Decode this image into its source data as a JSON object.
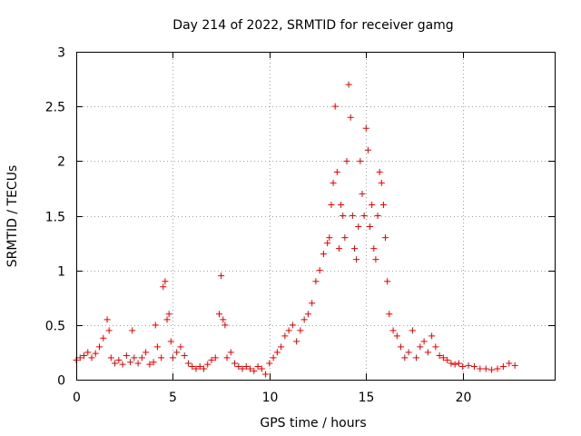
{
  "chart_data": {
    "type": "scatter",
    "title": "Day 214 of 2022, SRMTID for receiver gamg",
    "xlabel": "GPS time / hours",
    "ylabel": "SRMTID / TECUs",
    "xlim": [
      0,
      24.76
    ],
    "ylim": [
      0,
      3
    ],
    "xticks": [
      0,
      5,
      10,
      15,
      20
    ],
    "yticks": [
      0,
      0.5,
      1,
      1.5,
      2,
      2.5,
      3
    ],
    "ytick_labels": [
      "0",
      "0.5",
      "1",
      "1.5",
      "2",
      "2.5",
      "3"
    ],
    "grid": true,
    "marker": "+",
    "color": "#e00000",
    "series": [
      {
        "name": "SRMTID",
        "x": [
          0.0,
          0.2,
          0.4,
          0.6,
          0.8,
          1.0,
          1.2,
          1.4,
          1.6,
          1.7,
          1.8,
          2.0,
          2.2,
          2.4,
          2.6,
          2.8,
          2.9,
          3.0,
          3.2,
          3.4,
          3.6,
          3.8,
          4.0,
          4.1,
          4.2,
          4.4,
          4.5,
          4.6,
          4.7,
          4.8,
          4.9,
          5.0,
          5.2,
          5.4,
          5.6,
          5.8,
          6.0,
          6.2,
          6.4,
          6.6,
          6.8,
          7.0,
          7.2,
          7.4,
          7.5,
          7.6,
          7.7,
          7.8,
          8.0,
          8.2,
          8.4,
          8.6,
          8.8,
          9.0,
          9.2,
          9.4,
          9.6,
          9.8,
          10.0,
          10.2,
          10.4,
          10.6,
          10.8,
          11.0,
          11.2,
          11.4,
          11.6,
          11.8,
          12.0,
          12.2,
          12.4,
          12.6,
          12.8,
          13.0,
          13.1,
          13.2,
          13.3,
          13.4,
          13.5,
          13.6,
          13.7,
          13.8,
          13.9,
          14.0,
          14.1,
          14.2,
          14.3,
          14.4,
          14.5,
          14.6,
          14.7,
          14.8,
          14.9,
          15.0,
          15.1,
          15.2,
          15.3,
          15.4,
          15.5,
          15.6,
          15.7,
          15.8,
          15.9,
          16.0,
          16.1,
          16.2,
          16.4,
          16.6,
          16.8,
          17.0,
          17.2,
          17.4,
          17.6,
          17.8,
          18.0,
          18.2,
          18.4,
          18.6,
          18.8,
          19.0,
          19.2,
          19.4,
          19.6,
          19.8,
          20.0,
          20.3,
          20.6,
          20.9,
          21.2,
          21.5,
          21.8,
          22.1,
          22.4,
          22.7
        ],
        "y": [
          0.18,
          0.2,
          0.22,
          0.25,
          0.2,
          0.24,
          0.3,
          0.38,
          0.55,
          0.45,
          0.2,
          0.15,
          0.18,
          0.14,
          0.22,
          0.16,
          0.45,
          0.2,
          0.15,
          0.2,
          0.25,
          0.14,
          0.16,
          0.5,
          0.3,
          0.2,
          0.85,
          0.9,
          0.55,
          0.6,
          0.35,
          0.2,
          0.25,
          0.3,
          0.22,
          0.15,
          0.12,
          0.1,
          0.12,
          0.1,
          0.14,
          0.18,
          0.2,
          0.6,
          0.95,
          0.55,
          0.5,
          0.2,
          0.25,
          0.15,
          0.12,
          0.1,
          0.12,
          0.1,
          0.08,
          0.12,
          0.1,
          0.05,
          0.15,
          0.2,
          0.25,
          0.3,
          0.4,
          0.45,
          0.5,
          0.35,
          0.45,
          0.55,
          0.6,
          0.7,
          0.9,
          1.0,
          1.15,
          1.25,
          1.3,
          1.6,
          1.8,
          2.5,
          1.9,
          1.2,
          1.6,
          1.5,
          1.3,
          2.0,
          2.7,
          2.4,
          1.5,
          1.2,
          1.1,
          1.4,
          2.0,
          1.7,
          1.5,
          2.3,
          2.1,
          1.4,
          1.6,
          1.2,
          1.1,
          1.5,
          1.9,
          1.8,
          1.6,
          1.3,
          0.9,
          0.6,
          0.45,
          0.4,
          0.3,
          0.2,
          0.25,
          0.45,
          0.2,
          0.3,
          0.35,
          0.25,
          0.4,
          0.3,
          0.22,
          0.2,
          0.18,
          0.15,
          0.14,
          0.15,
          0.12,
          0.13,
          0.12,
          0.1,
          0.1,
          0.09,
          0.1,
          0.12,
          0.15,
          0.13
        ]
      }
    ]
  }
}
